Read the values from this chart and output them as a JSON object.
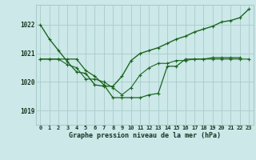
{
  "title": "Graphe pression niveau de la mer (hPa)",
  "bg_color": "#cce8e8",
  "grid_color": "#aacccc",
  "line_color": "#1a6620",
  "x_labels": [
    "0",
    "1",
    "2",
    "3",
    "4",
    "5",
    "6",
    "7",
    "8",
    "9",
    "10",
    "11",
    "12",
    "13",
    "14",
    "15",
    "16",
    "17",
    "18",
    "19",
    "20",
    "21",
    "22",
    "23"
  ],
  "ylim": [
    1018.5,
    1022.7
  ],
  "yticks": [
    1019,
    1020,
    1021,
    1022
  ],
  "series1": [
    1022.0,
    1021.5,
    1021.1,
    1020.7,
    1020.35,
    1020.3,
    1019.9,
    1019.85,
    1019.85,
    1020.2,
    1020.75,
    1021.0,
    1021.1,
    1021.2,
    1021.35,
    1021.5,
    1021.6,
    1021.75,
    1021.85,
    1021.95,
    1022.1,
    1022.15,
    1022.25,
    1022.55
  ],
  "series2": [
    1020.8,
    1020.8,
    1020.8,
    1020.6,
    1020.5,
    1020.1,
    1020.1,
    1020.0,
    1019.8,
    1019.55,
    1019.8,
    1020.25,
    1020.5,
    1020.65,
    1020.65,
    1020.75,
    1020.75,
    1020.8,
    1020.8,
    1020.8,
    1020.8,
    1020.8,
    1020.8,
    1020.8
  ],
  "series3": [
    1020.8,
    1020.8,
    1020.8,
    1020.8,
    1020.8,
    1020.4,
    1020.2,
    1019.9,
    1019.45,
    1019.45,
    1019.45,
    1019.45,
    1019.55,
    1019.6,
    1020.55,
    1020.55,
    1020.8,
    1020.8,
    1020.8,
    1020.85,
    1020.85,
    1020.85,
    1020.85,
    null
  ]
}
